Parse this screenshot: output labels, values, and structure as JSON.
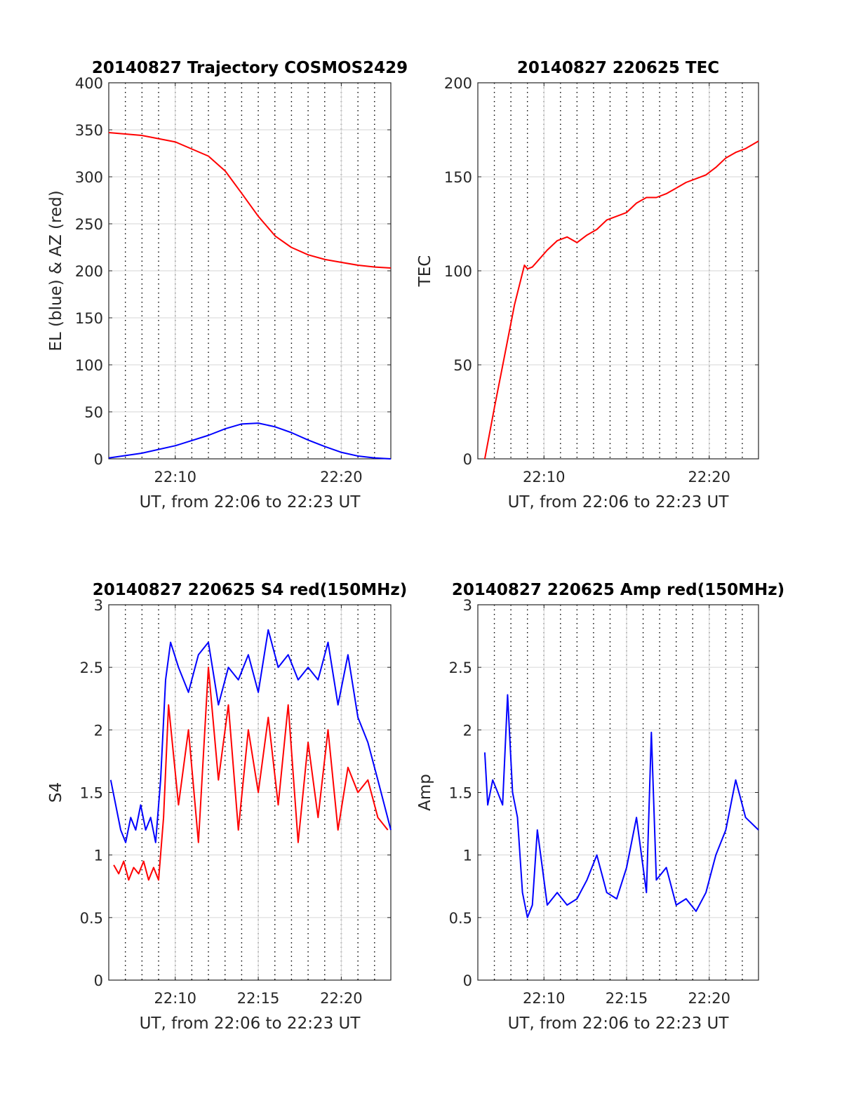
{
  "chart_data": [
    {
      "id": "trajectory",
      "type": "line",
      "title": "20140827 Trajectory COSMOS2429",
      "xlabel": "UT, from 22:06 to 22:23 UT",
      "ylabel": "EL (blue) & AZ (red)",
      "xlim": [
        22.1,
        22.383
      ],
      "ylim": [
        0,
        400
      ],
      "xticks": [
        22.1667,
        22.3333
      ],
      "xtick_labels": [
        "22:10",
        "22:20"
      ],
      "yticks": [
        0,
        50,
        100,
        150,
        200,
        250,
        300,
        350,
        400
      ],
      "ytick_labels": [
        "0",
        "50",
        "100",
        "150",
        "200",
        "250",
        "300",
        "350",
        "400"
      ],
      "grid": "on",
      "series": [
        {
          "color": "#ff0000",
          "x": [
            22.1,
            22.133,
            22.167,
            22.2,
            22.217,
            22.233,
            22.25,
            22.267,
            22.283,
            22.3,
            22.317,
            22.333,
            22.35,
            22.367,
            22.383
          ],
          "values": [
            347,
            344,
            337,
            322,
            306,
            283,
            258,
            237,
            225,
            217,
            212,
            209,
            206,
            204,
            203
          ]
        },
        {
          "color": "#0000ff",
          "x": [
            22.1,
            22.133,
            22.167,
            22.2,
            22.217,
            22.233,
            22.25,
            22.267,
            22.283,
            22.3,
            22.317,
            22.333,
            22.35,
            22.367,
            22.383
          ],
          "values": [
            1,
            6,
            14,
            25,
            32,
            37,
            38,
            34,
            28,
            20,
            13,
            7,
            3,
            1,
            0
          ]
        }
      ]
    },
    {
      "id": "tec",
      "type": "line",
      "title": "20140827 220625 TEC",
      "xlabel": "UT, from 22:06 to 22:23 UT",
      "ylabel": "TEC",
      "xlim": [
        22.1,
        22.383
      ],
      "ylim": [
        0,
        200
      ],
      "xticks": [
        22.1667,
        22.3333
      ],
      "xtick_labels": [
        "22:10",
        "22:20"
      ],
      "yticks": [
        0,
        50,
        100,
        150,
        200
      ],
      "ytick_labels": [
        "0",
        "50",
        "100",
        "150",
        "200"
      ],
      "grid": "on",
      "series": [
        {
          "color": "#ff0000",
          "x": [
            22.107,
            22.117,
            22.127,
            22.137,
            22.147,
            22.15,
            22.155,
            22.16,
            22.17,
            22.18,
            22.19,
            22.2,
            22.21,
            22.22,
            22.23,
            22.25,
            22.26,
            22.27,
            22.28,
            22.29,
            22.3,
            22.31,
            22.32,
            22.33,
            22.34,
            22.35,
            22.36,
            22.37,
            22.383
          ],
          "values": [
            0,
            28,
            55,
            82,
            103,
            101,
            102,
            105,
            111,
            116,
            118,
            115,
            119,
            122,
            127,
            131,
            136,
            139,
            139,
            141,
            144,
            147,
            149,
            151,
            155,
            160,
            163,
            165,
            169
          ]
        }
      ]
    },
    {
      "id": "s4",
      "type": "line",
      "title": "20140827 220625 S4 red(150MHz)",
      "xlabel": "UT, from 22:06 to 22:23 UT",
      "ylabel": "S4",
      "xlim": [
        22.1,
        22.383
      ],
      "ylim": [
        0,
        3
      ],
      "xticks": [
        22.1667,
        22.25,
        22.3333
      ],
      "xtick_labels": [
        "22:10",
        "22:15",
        "22:20"
      ],
      "yticks": [
        0,
        0.5,
        1,
        1.5,
        2,
        2.5,
        3
      ],
      "ytick_labels": [
        "0",
        "0.5",
        "1",
        "1.5",
        "2",
        "2.5",
        "3"
      ],
      "grid": "on",
      "series": [
        {
          "color": "#ff0000",
          "x": [
            22.105,
            22.11,
            22.115,
            22.12,
            22.125,
            22.13,
            22.135,
            22.14,
            22.145,
            22.15,
            22.155,
            22.16,
            22.17,
            22.18,
            22.19,
            22.2,
            22.21,
            22.22,
            22.23,
            22.24,
            22.25,
            22.26,
            22.27,
            22.28,
            22.29,
            22.3,
            22.31,
            22.32,
            22.33,
            22.34,
            22.35,
            22.36,
            22.37,
            22.38
          ],
          "values": [
            0.92,
            0.85,
            0.95,
            0.8,
            0.9,
            0.85,
            0.95,
            0.8,
            0.9,
            0.8,
            1.3,
            2.2,
            1.4,
            2.0,
            1.1,
            2.5,
            1.6,
            2.2,
            1.2,
            2.0,
            1.5,
            2.1,
            1.4,
            2.2,
            1.1,
            1.9,
            1.3,
            2.0,
            1.2,
            1.7,
            1.5,
            1.6,
            1.3,
            1.2
          ]
        },
        {
          "color": "#0000ff",
          "x": [
            22.102,
            22.107,
            22.112,
            22.117,
            22.122,
            22.127,
            22.132,
            22.137,
            22.142,
            22.147,
            22.152,
            22.157,
            22.162,
            22.17,
            22.18,
            22.19,
            22.2,
            22.21,
            22.22,
            22.23,
            22.24,
            22.25,
            22.26,
            22.27,
            22.28,
            22.29,
            22.3,
            22.31,
            22.32,
            22.33,
            22.34,
            22.35,
            22.36,
            22.37,
            22.383
          ],
          "values": [
            1.6,
            1.4,
            1.2,
            1.1,
            1.3,
            1.2,
            1.4,
            1.2,
            1.3,
            1.1,
            1.6,
            2.4,
            2.7,
            2.5,
            2.3,
            2.6,
            2.7,
            2.2,
            2.5,
            2.4,
            2.6,
            2.3,
            2.8,
            2.5,
            2.6,
            2.4,
            2.5,
            2.4,
            2.7,
            2.2,
            2.6,
            2.1,
            1.9,
            1.6,
            1.2
          ]
        }
      ]
    },
    {
      "id": "amp",
      "type": "line",
      "title": "20140827 220625 Amp red(150MHz)",
      "xlabel": "UT, from 22:06 to 22:23 UT",
      "ylabel": "Amp",
      "xlim": [
        22.1,
        22.383
      ],
      "ylim": [
        0,
        3
      ],
      "xticks": [
        22.1667,
        22.25,
        22.3333
      ],
      "xtick_labels": [
        "22:10",
        "22:15",
        "22:20"
      ],
      "yticks": [
        0,
        0.5,
        1,
        1.5,
        2,
        2.5,
        3
      ],
      "ytick_labels": [
        "0",
        "0.5",
        "1",
        "1.5",
        "2",
        "2.5",
        "3"
      ],
      "grid": "on",
      "series": [
        {
          "color": "#0000ff",
          "x": [
            22.107,
            22.11,
            22.115,
            22.12,
            22.125,
            22.13,
            22.135,
            22.14,
            22.145,
            22.15,
            22.155,
            22.16,
            22.165,
            22.17,
            22.18,
            22.19,
            22.2,
            22.21,
            22.22,
            22.23,
            22.24,
            22.25,
            22.26,
            22.27,
            22.275,
            22.28,
            22.29,
            22.3,
            22.31,
            22.32,
            22.33,
            22.34,
            22.35,
            22.36,
            22.37,
            22.383
          ],
          "values": [
            1.82,
            1.4,
            1.6,
            1.5,
            1.4,
            2.28,
            1.5,
            1.3,
            0.7,
            0.5,
            0.6,
            1.2,
            0.9,
            0.6,
            0.7,
            0.6,
            0.65,
            0.8,
            1.0,
            0.7,
            0.65,
            0.9,
            1.3,
            0.7,
            1.98,
            0.8,
            0.9,
            0.6,
            0.65,
            0.55,
            0.7,
            1.0,
            1.2,
            1.6,
            1.3,
            1.2
          ]
        }
      ]
    }
  ]
}
